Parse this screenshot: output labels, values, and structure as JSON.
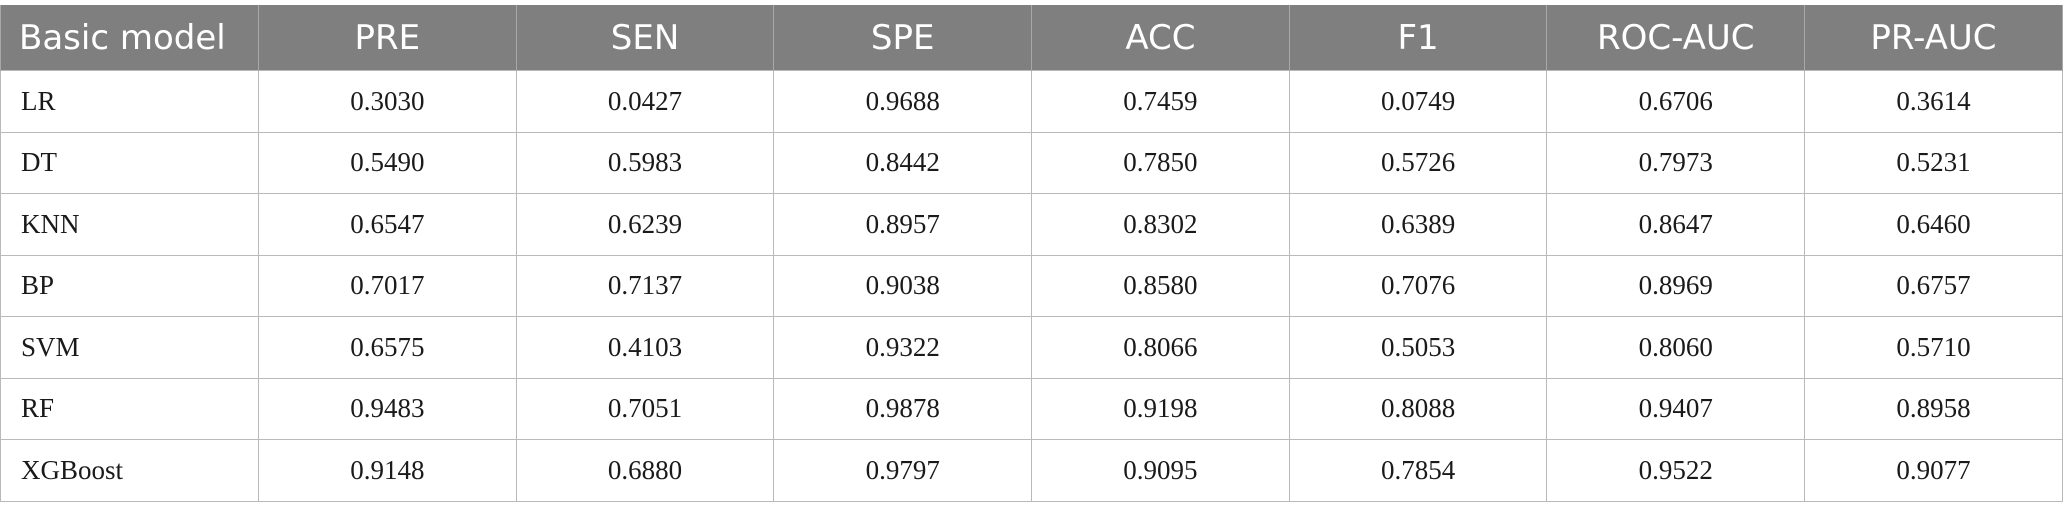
{
  "table": {
    "headers": [
      "Basic model",
      "PRE",
      "SEN",
      "SPE",
      "ACC",
      "F1",
      "ROC-AUC",
      "PR-AUC"
    ],
    "rows": [
      [
        "LR",
        "0.3030",
        "0.0427",
        "0.9688",
        "0.7459",
        "0.0749",
        "0.6706",
        "0.3614"
      ],
      [
        "DT",
        "0.5490",
        "0.5983",
        "0.8442",
        "0.7850",
        "0.5726",
        "0.7973",
        "0.5231"
      ],
      [
        "KNN",
        "0.6547",
        "0.6239",
        "0.8957",
        "0.8302",
        "0.6389",
        "0.8647",
        "0.6460"
      ],
      [
        "BP",
        "0.7017",
        "0.7137",
        "0.9038",
        "0.8580",
        "0.7076",
        "0.8969",
        "0.6757"
      ],
      [
        "SVM",
        "0.6575",
        "0.4103",
        "0.9322",
        "0.8066",
        "0.5053",
        "0.8060",
        "0.5710"
      ],
      [
        "RF",
        "0.9483",
        "0.7051",
        "0.9878",
        "0.9198",
        "0.8088",
        "0.9407",
        "0.8958"
      ],
      [
        "XGBoost",
        "0.9148",
        "0.6880",
        "0.9797",
        "0.9095",
        "0.7854",
        "0.9522",
        "0.9077"
      ]
    ]
  },
  "colors": {
    "header_background": "#7f7f7f",
    "header_text": "#ffffff",
    "grid": "#b9b9b9"
  }
}
